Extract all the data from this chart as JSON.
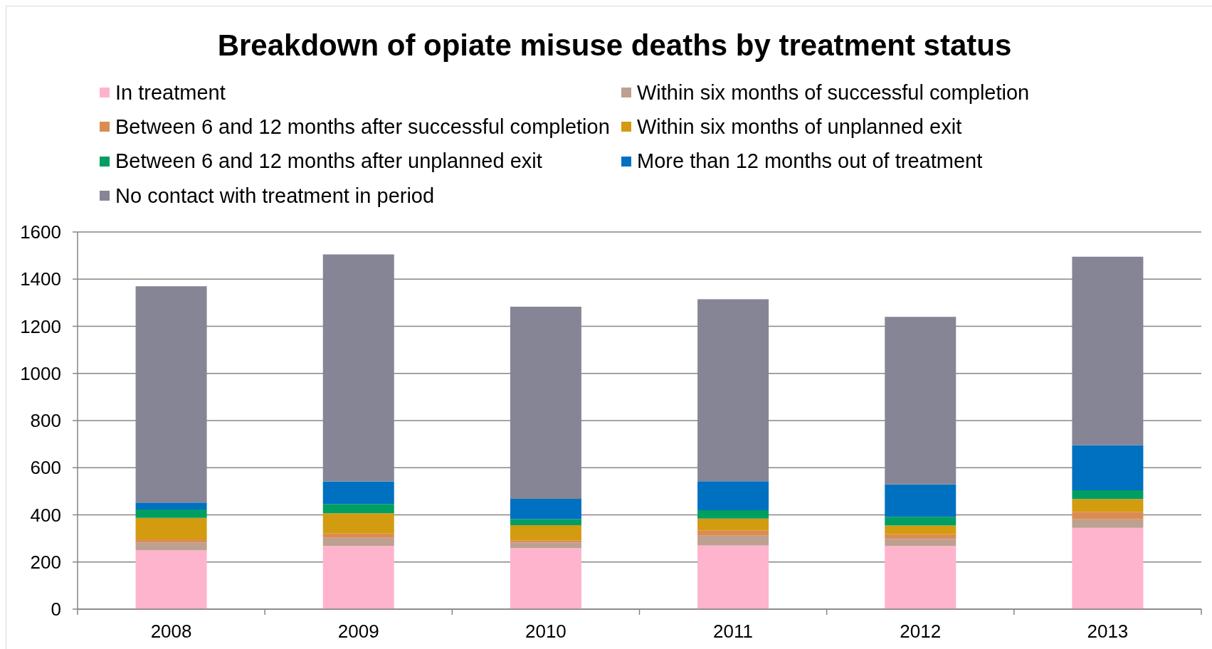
{
  "chart_data": {
    "type": "bar",
    "title": "Breakdown of opiate misuse deaths by treatment status",
    "categories": [
      "2008",
      "2009",
      "2010",
      "2011",
      "2012",
      "2013"
    ],
    "series": [
      {
        "name": "In treatment",
        "color": "#feb4cc",
        "values": [
          250,
          268,
          259,
          270,
          268,
          345
        ]
      },
      {
        "name": "Within six months of successful completion",
        "color": "#bea090",
        "values": [
          33,
          35,
          24,
          42,
          30,
          36
        ]
      },
      {
        "name": "Between 6 and 12 months after successful completion",
        "color": "#db8c52",
        "values": [
          13,
          18,
          9,
          22,
          20,
          32
        ]
      },
      {
        "name": "Within six months of unplanned exit",
        "color": "#d39b10",
        "values": [
          91,
          86,
          64,
          50,
          37,
          54
        ]
      },
      {
        "name": "Between 6 and 12 months after unplanned exit",
        "color": "#009e61",
        "values": [
          36,
          39,
          26,
          36,
          37,
          37
        ]
      },
      {
        "name": "More than 12 months out of treatment",
        "color": "#0070c0",
        "values": [
          29,
          96,
          86,
          123,
          137,
          192
        ]
      },
      {
        "name": "No contact with treatment in period",
        "color": "#858596",
        "values": [
          918,
          963,
          815,
          772,
          711,
          799
        ]
      }
    ],
    "stacked": true,
    "ylim": [
      0,
      1600
    ],
    "yticks": [
      0,
      200,
      400,
      600,
      800,
      1000,
      1200,
      1400,
      1600
    ],
    "grid": "y",
    "legend": "top"
  }
}
